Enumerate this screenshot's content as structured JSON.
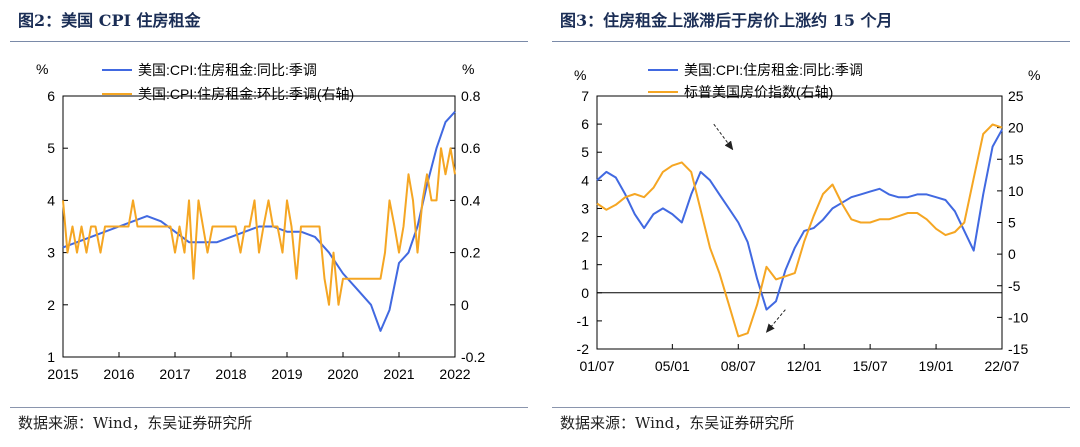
{
  "figures": {
    "left": {
      "title": "图2：美国 CPI 住房租金",
      "source": "数据来源：Wind，东吴证券研究所"
    },
    "right": {
      "title": "图3：住房租金上涨滞后于房价上涨约 15 个月",
      "source": "数据来源：Wind，东吴证券研究所"
    }
  },
  "chart_data": [
    {
      "type": "line",
      "ylabel": "%",
      "y2label": "%",
      "ylim": [
        1,
        6
      ],
      "y2lim": [
        -0.2,
        0.8
      ],
      "yticks": [
        "1",
        "2",
        "3",
        "4",
        "5",
        "6"
      ],
      "y2ticks": [
        "-0.2",
        "0",
        "0.2",
        "0.4",
        "0.6",
        "0.8"
      ],
      "xlim": [
        2015.0,
        2022.0
      ],
      "xticks": [
        "2015",
        "2016",
        "2017",
        "2018",
        "2019",
        "2020",
        "2021",
        "2022"
      ],
      "grid": false,
      "legend": "top-center",
      "colors": {
        "yoy": "#4169e1",
        "mom": "#f5a623"
      },
      "series": [
        {
          "name": "美国:CPI:住房租金:同比:季调",
          "axis": "left",
          "x": [
            2015.0,
            2015.25,
            2015.5,
            2015.75,
            2016.0,
            2016.25,
            2016.5,
            2016.75,
            2017.0,
            2017.25,
            2017.5,
            2017.75,
            2018.0,
            2018.25,
            2018.5,
            2018.75,
            2019.0,
            2019.25,
            2019.5,
            2019.75,
            2020.0,
            2020.25,
            2020.5,
            2020.67,
            2020.83,
            2021.0,
            2021.17,
            2021.33,
            2021.5,
            2021.67,
            2021.83,
            2022.0
          ],
          "y": [
            3.1,
            3.2,
            3.3,
            3.4,
            3.5,
            3.6,
            3.7,
            3.6,
            3.4,
            3.2,
            3.2,
            3.2,
            3.3,
            3.4,
            3.5,
            3.5,
            3.4,
            3.4,
            3.3,
            3.0,
            2.6,
            2.3,
            2.0,
            1.5,
            1.9,
            2.8,
            3.0,
            3.5,
            4.3,
            5.0,
            5.5,
            5.7
          ]
        },
        {
          "name": "美国:CPI:住房租金:环比:季调(右轴)",
          "axis": "right",
          "x": [
            2015.0,
            2015.08,
            2015.17,
            2015.25,
            2015.33,
            2015.42,
            2015.5,
            2015.58,
            2015.67,
            2015.75,
            2015.83,
            2015.92,
            2016.0,
            2016.08,
            2016.17,
            2016.25,
            2016.33,
            2016.42,
            2016.5,
            2016.58,
            2016.67,
            2016.75,
            2016.83,
            2016.92,
            2017.0,
            2017.08,
            2017.17,
            2017.25,
            2017.33,
            2017.42,
            2017.5,
            2017.58,
            2017.67,
            2017.75,
            2017.83,
            2017.92,
            2018.0,
            2018.08,
            2018.17,
            2018.25,
            2018.33,
            2018.42,
            2018.5,
            2018.58,
            2018.67,
            2018.75,
            2018.83,
            2018.92,
            2019.0,
            2019.08,
            2019.17,
            2019.25,
            2019.33,
            2019.42,
            2019.5,
            2019.58,
            2019.67,
            2019.75,
            2019.83,
            2019.92,
            2020.0,
            2020.08,
            2020.17,
            2020.25,
            2020.33,
            2020.42,
            2020.5,
            2020.58,
            2020.67,
            2020.75,
            2020.83,
            2020.92,
            2021.0,
            2021.08,
            2021.17,
            2021.25,
            2021.33,
            2021.42,
            2021.5,
            2021.58,
            2021.67,
            2021.75,
            2021.83,
            2021.92,
            2022.0
          ],
          "y": [
            0.4,
            0.2,
            0.3,
            0.2,
            0.3,
            0.2,
            0.3,
            0.3,
            0.2,
            0.3,
            0.3,
            0.3,
            0.3,
            0.3,
            0.3,
            0.4,
            0.3,
            0.3,
            0.3,
            0.3,
            0.3,
            0.3,
            0.3,
            0.3,
            0.2,
            0.3,
            0.2,
            0.4,
            0.1,
            0.4,
            0.3,
            0.2,
            0.3,
            0.3,
            0.3,
            0.3,
            0.3,
            0.3,
            0.2,
            0.3,
            0.3,
            0.4,
            0.2,
            0.3,
            0.4,
            0.3,
            0.3,
            0.2,
            0.4,
            0.3,
            0.1,
            0.3,
            0.3,
            0.3,
            0.3,
            0.3,
            0.1,
            0.0,
            0.2,
            0.0,
            0.1,
            0.1,
            0.1,
            0.1,
            0.1,
            0.1,
            0.1,
            0.1,
            0.1,
            0.2,
            0.4,
            0.3,
            0.2,
            0.3,
            0.5,
            0.4,
            0.2,
            0.4,
            0.5,
            0.4,
            0.4,
            0.6,
            0.5,
            0.6,
            0.5
          ]
        }
      ]
    },
    {
      "type": "line",
      "ylabel": "%",
      "y2label": "%",
      "ylim": [
        -2,
        7
      ],
      "y2lim": [
        -15,
        25
      ],
      "yticks": [
        "-2",
        "-1",
        "0",
        "1",
        "2",
        "3",
        "4",
        "5",
        "6",
        "7"
      ],
      "y2ticks": [
        "-15",
        "-10",
        "-5",
        "0",
        "5",
        "10",
        "15",
        "20",
        "25"
      ],
      "xlim": [
        2001.0,
        2022.5
      ],
      "xtick_positions": [
        2001.0,
        2005.0,
        2008.5,
        2012.0,
        2015.5,
        2019.0,
        2022.5
      ],
      "xticks": [
        "01/07",
        "05/01",
        "08/07",
        "12/01",
        "15/07",
        "19/01",
        "22/07"
      ],
      "grid": false,
      "legend": "top-center",
      "colors": {
        "rent": "#4169e1",
        "hpi": "#f5a623",
        "arrow": "#222222"
      },
      "series": [
        {
          "name": "美国:CPI:住房租金:同比:季调",
          "axis": "left",
          "x": [
            2001.0,
            2001.5,
            2002.0,
            2002.5,
            2003.0,
            2003.5,
            2004.0,
            2004.5,
            2005.0,
            2005.5,
            2006.0,
            2006.5,
            2007.0,
            2007.5,
            2008.0,
            2008.5,
            2009.0,
            2009.5,
            2010.0,
            2010.5,
            2011.0,
            2011.5,
            2012.0,
            2012.5,
            2013.0,
            2013.5,
            2014.0,
            2014.5,
            2015.0,
            2015.5,
            2016.0,
            2016.5,
            2017.0,
            2017.5,
            2018.0,
            2018.5,
            2019.0,
            2019.5,
            2020.0,
            2020.5,
            2021.0,
            2021.5,
            2022.0,
            2022.5
          ],
          "y": [
            4.0,
            4.3,
            4.1,
            3.5,
            2.8,
            2.3,
            2.8,
            3.0,
            2.8,
            2.5,
            3.5,
            4.3,
            4.0,
            3.5,
            3.0,
            2.5,
            1.8,
            0.5,
            -0.6,
            -0.3,
            0.8,
            1.6,
            2.2,
            2.3,
            2.6,
            3.0,
            3.2,
            3.4,
            3.5,
            3.6,
            3.7,
            3.5,
            3.4,
            3.4,
            3.5,
            3.5,
            3.4,
            3.3,
            2.9,
            2.2,
            1.5,
            3.5,
            5.2,
            5.8
          ]
        },
        {
          "name": "标普美国房价指数(右轴)",
          "axis": "right",
          "x": [
            2001.0,
            2001.5,
            2002.0,
            2002.5,
            2003.0,
            2003.5,
            2004.0,
            2004.5,
            2005.0,
            2005.5,
            2006.0,
            2006.5,
            2007.0,
            2007.5,
            2008.0,
            2008.5,
            2009.0,
            2009.5,
            2010.0,
            2010.5,
            2011.0,
            2011.5,
            2012.0,
            2012.5,
            2013.0,
            2013.5,
            2014.0,
            2014.5,
            2015.0,
            2015.5,
            2016.0,
            2016.5,
            2017.0,
            2017.5,
            2018.0,
            2018.5,
            2019.0,
            2019.5,
            2020.0,
            2020.5,
            2021.0,
            2021.5,
            2022.0,
            2022.5
          ],
          "y": [
            8.0,
            7.0,
            7.8,
            9.0,
            9.5,
            9.0,
            10.5,
            13.0,
            14.0,
            14.5,
            13.0,
            7.0,
            1.0,
            -3.0,
            -8.0,
            -13.0,
            -12.5,
            -8.0,
            -2.0,
            -4.0,
            -3.5,
            -3.0,
            2.0,
            6.0,
            9.5,
            11.0,
            8.0,
            5.5,
            5.0,
            5.0,
            5.5,
            5.5,
            6.0,
            6.5,
            6.5,
            5.5,
            4.0,
            3.0,
            3.5,
            5.0,
            12.0,
            19.0,
            20.5,
            20.0
          ]
        }
      ],
      "annotations": [
        {
          "type": "arrow",
          "from": [
            2007.2,
            6.0
          ],
          "to": [
            2008.2,
            5.1
          ],
          "note": ""
        },
        {
          "type": "arrow",
          "from": [
            2011.0,
            -0.6
          ],
          "to": [
            2010.0,
            -1.4
          ],
          "note": ""
        }
      ]
    }
  ]
}
